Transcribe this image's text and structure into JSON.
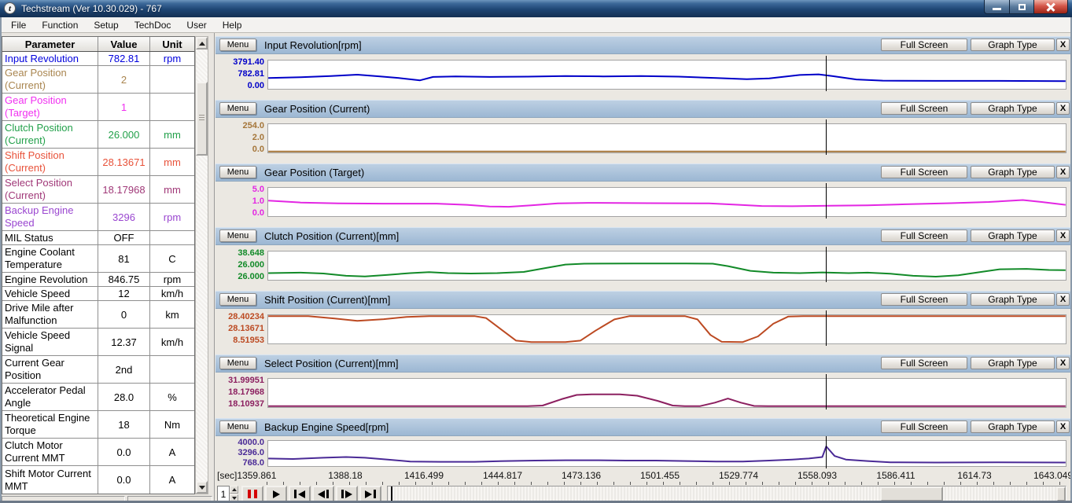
{
  "window": {
    "title": "Techstream (Ver 10.30.029) - 767",
    "app_icon_letter": "t"
  },
  "menu_bar": {
    "items": [
      "File",
      "Function",
      "Setup",
      "TechDoc",
      "User",
      "Help"
    ]
  },
  "data_list": {
    "columns": [
      "Parameter",
      "Value",
      "Unit"
    ],
    "rows": [
      {
        "parameter": "Input Revolution",
        "value": "782.81",
        "unit": "rpm",
        "color": "#0000dd"
      },
      {
        "parameter": "Gear Position (Current)",
        "value": "2",
        "unit": "",
        "color": "#a9854f"
      },
      {
        "parameter": "Gear Position (Target)",
        "value": "1",
        "unit": "",
        "color": "#f030f0"
      },
      {
        "parameter": "Clutch Position (Current)",
        "value": "26.000",
        "unit": "mm",
        "color": "#22a04a"
      },
      {
        "parameter": "Shift Position (Current)",
        "value": "28.13671",
        "unit": "mm",
        "color": "#e8523a"
      },
      {
        "parameter": "Select Position (Current)",
        "value": "18.17968",
        "unit": "mm",
        "color": "#a03878"
      },
      {
        "parameter": "Backup Engine Speed",
        "value": "3296",
        "unit": "rpm",
        "color": "#9a46d0"
      },
      {
        "parameter": "MIL Status",
        "value": "OFF",
        "unit": "",
        "color": "#000000"
      },
      {
        "parameter": "Engine Coolant Temperature",
        "value": "81",
        "unit": "C",
        "color": "#000000"
      },
      {
        "parameter": "Engine Revolution",
        "value": "846.75",
        "unit": "rpm",
        "color": "#000000"
      },
      {
        "parameter": "Vehicle Speed",
        "value": "12",
        "unit": "km/h",
        "color": "#000000"
      },
      {
        "parameter": "Drive Mile after Malfunction",
        "value": "0",
        "unit": "km",
        "color": "#000000"
      },
      {
        "parameter": "Vehicle Speed Signal",
        "value": "12.37",
        "unit": "km/h",
        "color": "#000000"
      },
      {
        "parameter": "Current Gear Position",
        "value": "2nd",
        "unit": "",
        "color": "#000000"
      },
      {
        "parameter": "Accelerator Pedal Angle",
        "value": "28.0",
        "unit": "%",
        "color": "#000000"
      },
      {
        "parameter": "Theoretical Engine Torque",
        "value": "18",
        "unit": "Nm",
        "color": "#000000"
      },
      {
        "parameter": "Clutch Motor Current MMT",
        "value": "0.0",
        "unit": "A",
        "color": "#000000"
      },
      {
        "parameter": "Shift Motor Current MMT",
        "value": "0.0",
        "unit": "A",
        "color": "#000000"
      }
    ]
  },
  "graph_controls": {
    "menu_label": "Menu",
    "full_screen_label": "Full Screen",
    "graph_type_label": "Graph Type",
    "close_label": "X"
  },
  "time_axis": {
    "unit_prefix": "[sec]",
    "start": 1359.861,
    "end": 1643.049,
    "ticks": [
      "1359.861",
      "1388.18",
      "1416.499",
      "1444.817",
      "1473.136",
      "1501.455",
      "1529.774",
      "1558.093",
      "1586.411",
      "1614.73",
      "1643.049"
    ]
  },
  "playback": {
    "speed_value": "1",
    "cursor_time": 1558,
    "buttons": [
      "pause",
      "play",
      "skip-start",
      "step-back",
      "step-forward",
      "skip-end"
    ]
  },
  "chart_data": [
    {
      "type": "line",
      "title": "Input Revolution[rpm]",
      "y_labels": [
        "3791.40",
        "782.81",
        "0.00"
      ],
      "color": "#0000c8",
      "ylim": [
        0,
        2000
      ],
      "t": [
        1359.9,
        1371.4,
        1382.1,
        1391.5,
        1399.6,
        1406.3,
        1413.8,
        1418.4,
        1426.4,
        1438.5,
        1451.9,
        1465.4,
        1478.8,
        1492.2,
        1505.6,
        1519.0,
        1529.8,
        1537.8,
        1548.6,
        1555.3,
        1560.1,
        1568.7,
        1578.1,
        1596.9,
        1618.3,
        1643.0
      ],
      "v": [
        760,
        820,
        900,
        1000,
        880,
        760,
        600,
        840,
        880,
        840,
        860,
        900,
        880,
        900,
        860,
        760,
        680,
        740,
        980,
        1020,
        900,
        660,
        580,
        560,
        560,
        540
      ]
    },
    {
      "type": "line",
      "title": "Gear Position (Current)",
      "y_labels": [
        "254.0",
        "2.0",
        "0.0"
      ],
      "color": "#a5763a",
      "ylim": [
        0,
        254
      ],
      "t": [
        1359.9,
        1643.0
      ],
      "v": [
        2,
        2
      ]
    },
    {
      "type": "line",
      "title": "Gear Position (Target)",
      "y_labels": [
        "5.0",
        "1.0",
        "0.0"
      ],
      "color": "#e326e3",
      "ylim": [
        0,
        2.2
      ],
      "t": [
        1359.9,
        1371.4,
        1384.8,
        1400.9,
        1419.7,
        1430.4,
        1438.5,
        1445.2,
        1453.3,
        1462.7,
        1473.4,
        1494.9,
        1516.4,
        1527.1,
        1535.1,
        1545.9,
        1559.3,
        1572.7,
        1586.2,
        1602.3,
        1615.7,
        1627.8,
        1634.5,
        1643.0
      ],
      "v": [
        1.21,
        1.06,
        0.99,
        0.97,
        0.97,
        0.88,
        0.75,
        0.73,
        0.84,
        0.99,
        1.03,
        1.01,
        0.99,
        0.88,
        0.79,
        0.77,
        0.81,
        0.84,
        0.92,
        1.01,
        1.1,
        1.25,
        1.1,
        0.88
      ]
    },
    {
      "type": "line",
      "title": "Clutch Position (Current)[mm]",
      "y_labels": [
        "38.648",
        "26.000",
        "26.000"
      ],
      "color": "#128a28",
      "ylim": [
        26,
        38.648
      ],
      "t": [
        1359.9,
        1371.4,
        1379.5,
        1387.5,
        1394.2,
        1402.3,
        1410.3,
        1417.0,
        1423.7,
        1431.8,
        1441.2,
        1450.6,
        1458.6,
        1465.4,
        1472.1,
        1489.5,
        1508.3,
        1517.7,
        1523.1,
        1531.1,
        1539.2,
        1548.6,
        1556.6,
        1566.0,
        1572.7,
        1580.8,
        1588.8,
        1596.9,
        1604.9,
        1613.0,
        1619.7,
        1629.1,
        1637.1,
        1643.0
      ],
      "v": [
        29.0,
        29.2,
        28.8,
        27.8,
        27.5,
        28.2,
        29.0,
        29.4,
        29.0,
        28.8,
        29.0,
        29.5,
        31.3,
        32.8,
        33.2,
        33.3,
        33.3,
        33.2,
        32.1,
        30.0,
        29.2,
        29.0,
        29.3,
        29.0,
        29.2,
        28.7,
        27.8,
        27.4,
        28.0,
        29.5,
        30.7,
        30.9,
        30.4,
        30.3
      ]
    },
    {
      "type": "line",
      "title": "Shift Position (Current)[mm]",
      "y_labels": [
        "28.40234",
        "28.13671",
        "8.51953"
      ],
      "color": "#bc4a22",
      "ylim": [
        8.51953,
        28.40234
      ],
      "t": [
        1359.9,
        1374.1,
        1383.5,
        1391.5,
        1400.9,
        1409.0,
        1417.0,
        1433.1,
        1437.2,
        1442.5,
        1447.9,
        1453.3,
        1465.4,
        1470.7,
        1476.1,
        1482.8,
        1488.2,
        1494.9,
        1507.8,
        1512.3,
        1516.9,
        1520.9,
        1528.4,
        1533.8,
        1539.2,
        1544.5,
        1549.9,
        1575.4,
        1643.0
      ],
      "v": [
        28.0,
        27.8,
        26.0,
        24.4,
        25.6,
        27.2,
        28.0,
        28.1,
        26.4,
        18.5,
        10.5,
        9.5,
        9.5,
        10.5,
        17.5,
        25.4,
        27.8,
        28.1,
        28.1,
        25.4,
        14.5,
        9.7,
        9.5,
        13.5,
        22.4,
        27.4,
        28.0,
        28.1,
        28.1
      ]
    },
    {
      "type": "line",
      "title": "Select Position (Current)[mm]",
      "y_labels": [
        "31.99951",
        "18.17968",
        "18.10937"
      ],
      "color": "#8c2060",
      "ylim": [
        18.10937,
        31.99951
      ],
      "t": [
        1359.9,
        1451.9,
        1457.3,
        1464.0,
        1469.4,
        1474.7,
        1484.7,
        1490.9,
        1498.1,
        1503.5,
        1507.8,
        1513.1,
        1518.5,
        1523.1,
        1527.7,
        1532.4,
        1537.2,
        1643.0
      ],
      "v": [
        18.4,
        18.4,
        18.9,
        22.0,
        24.1,
        24.4,
        24.4,
        23.7,
        21.2,
        18.9,
        18.4,
        18.5,
        20.3,
        22.3,
        20.3,
        18.7,
        18.4,
        18.4
      ]
    },
    {
      "type": "line",
      "title": "Backup Engine Speed[rpm]",
      "y_labels": [
        "4000.0",
        "3296.0",
        "768.0"
      ],
      "color": "#4a2a96",
      "ylim": [
        768,
        4000
      ],
      "t": [
        1359.9,
        1368.7,
        1379.5,
        1387.5,
        1394.2,
        1402.3,
        1410.3,
        1421.1,
        1433.1,
        1443.9,
        1454.6,
        1465.4,
        1476.1,
        1486.8,
        1497.6,
        1508.3,
        1519.0,
        1528.4,
        1537.8,
        1545.9,
        1551.8,
        1556.6,
        1558.0,
        1561.0,
        1565.0,
        1572.7,
        1580.8,
        1596.9,
        1618.3,
        1643.0
      ],
      "v": [
        1738,
        1673,
        1835,
        1932,
        1835,
        1608,
        1350,
        1317,
        1317,
        1414,
        1479,
        1511,
        1511,
        1479,
        1479,
        1414,
        1350,
        1350,
        1479,
        1608,
        1738,
        1932,
        3289,
        2061,
        1608,
        1414,
        1253,
        1220,
        1253,
        1220
      ]
    }
  ]
}
